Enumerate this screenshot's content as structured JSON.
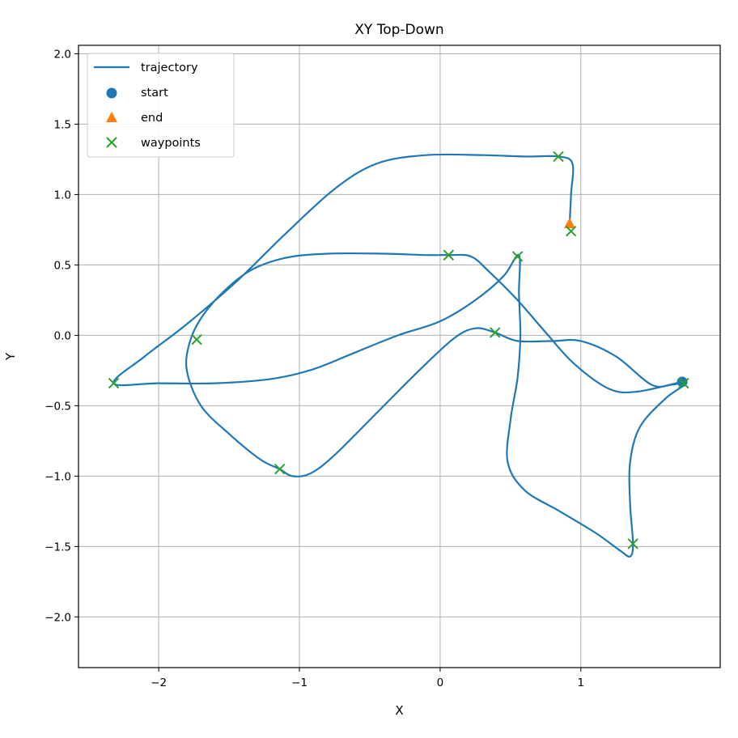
{
  "chart_data": {
    "type": "line",
    "title": "XY Top-Down",
    "xlabel": "X",
    "ylabel": "Y",
    "xlim": [
      -2.57,
      1.99
    ],
    "ylim": [
      -2.36,
      2.06
    ],
    "xticks": [
      -2,
      -1,
      0,
      1
    ],
    "yticks": [
      -2.0,
      -1.5,
      -1.0,
      -0.5,
      0.0,
      0.5,
      1.0,
      1.5,
      2.0
    ],
    "xtick_labels": [
      "−2",
      "−1",
      "0",
      "1"
    ],
    "ytick_labels": [
      "−2.0",
      "−1.5",
      "−1.0",
      "−0.5",
      "0.0",
      "0.5",
      "1.0",
      "1.5",
      "2.0"
    ],
    "grid": true,
    "legend": {
      "placement": "top-left",
      "entries": [
        {
          "label": "trajectory",
          "marker": "line",
          "color": "#1f77b4"
        },
        {
          "label": "start",
          "marker": "circle",
          "color": "#1f77b4"
        },
        {
          "label": "end",
          "marker": "triangle",
          "color": "#ff7f0e"
        },
        {
          "label": "waypoints",
          "marker": "x",
          "color": "#2ca02c"
        }
      ]
    },
    "series": [
      {
        "name": "trajectory",
        "color": "#1f77b4",
        "points": [
          [
            1.72,
            -0.33
          ],
          [
            1.4,
            -0.4
          ],
          [
            1.2,
            -0.38
          ],
          [
            0.95,
            -0.2
          ],
          [
            0.75,
            0.02
          ],
          [
            0.55,
            0.25
          ],
          [
            0.35,
            0.45
          ],
          [
            0.22,
            0.56
          ],
          [
            0.06,
            0.57
          ],
          [
            -0.1,
            0.57
          ],
          [
            -0.4,
            0.58
          ],
          [
            -0.8,
            0.58
          ],
          [
            -1.1,
            0.55
          ],
          [
            -1.35,
            0.46
          ],
          [
            -1.55,
            0.3
          ],
          [
            -1.7,
            0.12
          ],
          [
            -1.78,
            -0.05
          ],
          [
            -1.8,
            -0.25
          ],
          [
            -1.7,
            -0.5
          ],
          [
            -1.5,
            -0.7
          ],
          [
            -1.28,
            -0.88
          ],
          [
            -1.14,
            -0.95
          ],
          [
            -1.05,
            -1.0
          ],
          [
            -0.92,
            -0.98
          ],
          [
            -0.75,
            -0.85
          ],
          [
            -0.45,
            -0.55
          ],
          [
            -0.15,
            -0.25
          ],
          [
            0.1,
            -0.02
          ],
          [
            0.25,
            0.05
          ],
          [
            0.39,
            0.02
          ],
          [
            0.55,
            -0.04
          ],
          [
            0.8,
            -0.04
          ],
          [
            1.0,
            -0.04
          ],
          [
            1.25,
            -0.15
          ],
          [
            1.5,
            -0.35
          ],
          [
            1.65,
            -0.35
          ],
          [
            1.75,
            -0.34
          ],
          [
            1.6,
            -0.45
          ],
          [
            1.42,
            -0.65
          ],
          [
            1.35,
            -0.9
          ],
          [
            1.35,
            -1.2
          ],
          [
            1.37,
            -1.48
          ],
          [
            1.35,
            -1.57
          ],
          [
            1.28,
            -1.53
          ],
          [
            1.1,
            -1.4
          ],
          [
            0.85,
            -1.25
          ],
          [
            0.6,
            -1.1
          ],
          [
            0.48,
            -0.9
          ],
          [
            0.5,
            -0.6
          ],
          [
            0.55,
            -0.3
          ],
          [
            0.57,
            0.0
          ],
          [
            0.56,
            0.3
          ],
          [
            0.56,
            0.57
          ],
          [
            0.45,
            0.42
          ],
          [
            0.25,
            0.25
          ],
          [
            0.0,
            0.1
          ],
          [
            -0.3,
            0.0
          ],
          [
            -0.6,
            -0.12
          ],
          [
            -0.9,
            -0.24
          ],
          [
            -1.2,
            -0.31
          ],
          [
            -1.6,
            -0.34
          ],
          [
            -2.0,
            -0.34
          ],
          [
            -2.32,
            -0.34
          ],
          [
            -2.1,
            -0.15
          ],
          [
            -1.8,
            0.08
          ],
          [
            -1.45,
            0.38
          ],
          [
            -1.1,
            0.72
          ],
          [
            -0.75,
            1.04
          ],
          [
            -0.45,
            1.22
          ],
          [
            -0.1,
            1.28
          ],
          [
            0.3,
            1.28
          ],
          [
            0.6,
            1.27
          ],
          [
            0.84,
            1.27
          ],
          [
            0.94,
            1.22
          ],
          [
            0.93,
            1.0
          ],
          [
            0.92,
            0.79
          ]
        ]
      }
    ],
    "start": [
      1.72,
      -0.33
    ],
    "end": [
      0.92,
      0.79
    ],
    "waypoints": [
      [
        0.84,
        1.27
      ],
      [
        0.93,
        0.74
      ],
      [
        0.06,
        0.57
      ],
      [
        0.55,
        0.56
      ],
      [
        0.39,
        0.02
      ],
      [
        -1.73,
        -0.03
      ],
      [
        -2.32,
        -0.34
      ],
      [
        1.73,
        -0.34
      ],
      [
        -1.14,
        -0.95
      ],
      [
        1.37,
        -1.48
      ]
    ]
  }
}
